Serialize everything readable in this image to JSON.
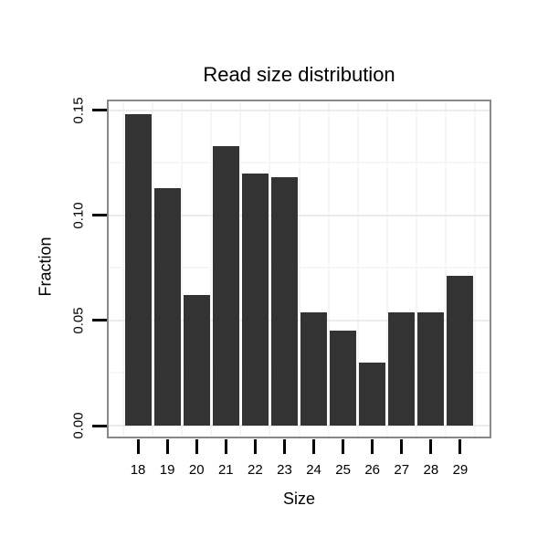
{
  "chart_data": {
    "type": "bar",
    "title": "Read size distribution",
    "xlabel": "Size",
    "ylabel": "Fraction",
    "categories": [
      "18",
      "19",
      "20",
      "21",
      "22",
      "23",
      "24",
      "25",
      "26",
      "27",
      "28",
      "29"
    ],
    "values": [
      0.148,
      0.113,
      0.062,
      0.133,
      0.12,
      0.118,
      0.054,
      0.045,
      0.03,
      0.054,
      0.054,
      0.071
    ],
    "ylim": [
      0,
      0.154
    ],
    "yticks": [
      {
        "value": 0.0,
        "label": "0.00"
      },
      {
        "value": 0.05,
        "label": "0.05"
      },
      {
        "value": 0.1,
        "label": "0.10"
      },
      {
        "value": 0.15,
        "label": "0.15"
      }
    ],
    "minor_gridlines_y": [
      0.025,
      0.075,
      0.125
    ],
    "grid": true,
    "legend": "none",
    "colors": {
      "bar": "#333333",
      "panel_border": "#888888",
      "grid_major": "#ececec",
      "grid_minor": "#f6f6f6",
      "tick": "#000000",
      "text": "#000000",
      "background": "#ffffff"
    }
  }
}
